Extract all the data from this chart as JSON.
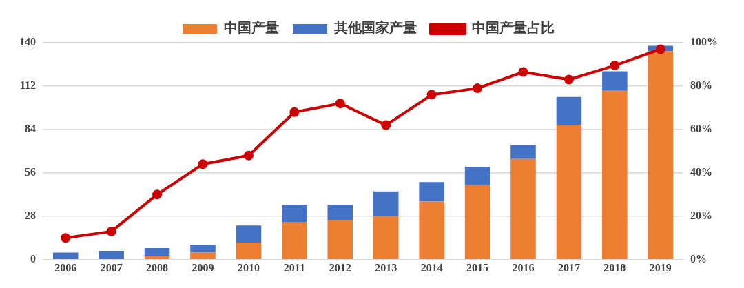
{
  "chart_data": {
    "type": "bar",
    "stacked": true,
    "categories": [
      "2006",
      "2007",
      "2008",
      "2009",
      "2010",
      "2011",
      "2012",
      "2013",
      "2014",
      "2015",
      "2016",
      "2017",
      "2018",
      "2019"
    ],
    "series": [
      {
        "name": "中国产量",
        "color": "#ed7d31",
        "values": [
          0,
          0,
          2.5,
          4.6,
          11,
          24,
          25.5,
          28,
          37.5,
          48,
          65,
          87,
          109,
          134.5
        ]
      },
      {
        "name": "其他国家产量",
        "color": "#4472c4",
        "values": [
          4.6,
          5.4,
          5,
          5,
          11,
          11.5,
          10,
          16,
          12.5,
          12,
          9,
          18,
          12.5,
          3.5
        ]
      },
      {
        "name": "中国产量占比",
        "type": "line",
        "axis": "y2",
        "color": "#cc0000",
        "marker": "circle",
        "line_style": "solid",
        "values": [
          10,
          13,
          30,
          44,
          48,
          68,
          72,
          62,
          76,
          79,
          86.5,
          83,
          89.5,
          97
        ]
      }
    ],
    "ylim": [
      0,
      140
    ],
    "yticks": [
      0,
      28,
      56,
      84,
      112,
      140
    ],
    "y2lim": [
      0,
      100
    ],
    "y2ticks": [
      {
        "value": 0,
        "label": "0%"
      },
      {
        "value": 20,
        "label": "20%"
      },
      {
        "value": 40,
        "label": "40%"
      },
      {
        "value": 60,
        "label": "60%"
      },
      {
        "value": 80,
        "label": "80%"
      },
      {
        "value": 100,
        "label": "100%"
      }
    ],
    "grid": "y",
    "legend": "top"
  }
}
